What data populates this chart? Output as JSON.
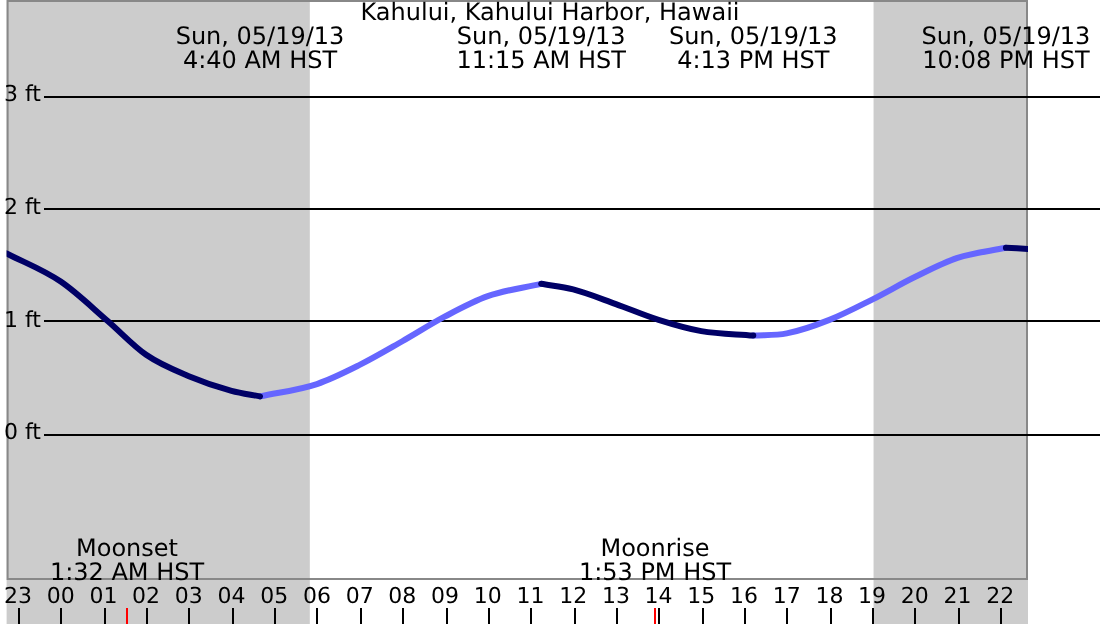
{
  "chart_data": {
    "type": "line",
    "title": "Kahului, Kahului Harbor, Hawaii",
    "xlim": [
      "--05-18T22:44",
      "--05-19T22:39"
    ],
    "xticks": [
      {
        "value": "--05-18T23:00",
        "label": "23"
      },
      {
        "value": "--05-19T00:00",
        "label": "00"
      },
      {
        "value": "--05-19T01:00",
        "label": "01"
      },
      {
        "value": "--05-19T02:00",
        "label": "02"
      },
      {
        "value": "--05-19T03:00",
        "label": "03"
      },
      {
        "value": "--05-19T04:00",
        "label": "04"
      },
      {
        "value": "--05-19T05:00",
        "label": "05"
      },
      {
        "value": "--05-19T06:00",
        "label": "06"
      },
      {
        "value": "--05-19T07:00",
        "label": "07"
      },
      {
        "value": "--05-19T08:00",
        "label": "08"
      },
      {
        "value": "--05-19T09:00",
        "label": "09"
      },
      {
        "value": "--05-19T10:00",
        "label": "10"
      },
      {
        "value": "--05-19T11:00",
        "label": "11"
      },
      {
        "value": "--05-19T12:00",
        "label": "12"
      },
      {
        "value": "--05-19T13:00",
        "label": "13"
      },
      {
        "value": "--05-19T14:00",
        "label": "14"
      },
      {
        "value": "--05-19T15:00",
        "label": "15"
      },
      {
        "value": "--05-19T16:00",
        "label": "16"
      },
      {
        "value": "--05-19T17:00",
        "label": "17"
      },
      {
        "value": "--05-19T18:00",
        "label": "18"
      },
      {
        "value": "--05-19T19:00",
        "label": "19"
      },
      {
        "value": "--05-19T20:00",
        "label": "20"
      },
      {
        "value": "--05-19T21:00",
        "label": "21"
      },
      {
        "value": "--05-19T22:00",
        "label": "22"
      }
    ],
    "ylim": [
      -1.3,
      3.85
    ],
    "yticks": [
      {
        "value": 0,
        "label": "0 ft"
      },
      {
        "value": 1,
        "label": "1 ft"
      },
      {
        "value": 2,
        "label": "2 ft"
      },
      {
        "value": 3,
        "label": "3 ft"
      }
    ],
    "grid": "y",
    "marker": "none",
    "line_style": "solid",
    "series": [
      {
        "color": "#000066",
        "x": [
          "--05-18T22:44",
          "--05-19T00:00",
          "--05-19T01:06",
          "--05-19T02:00",
          "--05-19T03:00",
          "--05-19T04:00",
          "--05-19T04:40",
          "--05-19T08:00",
          "--05-19T11:15",
          "--05-19T12:00",
          "--05-19T13:00",
          "--05-19T14:00",
          "--05-19T15:00",
          "--05-19T16:13",
          "--05-19T19:00",
          "--05-19T22:08",
          "--05-19T22:39"
        ],
        "values": [
          1.6,
          1.35,
          1,
          0.7,
          0.51,
          0.38,
          0.33,
          null,
          1.33,
          1.28,
          1.15,
          1.01,
          0.91,
          0.87,
          null,
          1.65,
          1.64
        ]
      },
      {
        "color": "#6666ff",
        "x": [
          "--05-19T04:40",
          "--05-19T06:00",
          "--05-19T07:00",
          "--05-19T08:00",
          "--05-19T09:00",
          "--05-19T10:00",
          "--05-19T11:15",
          "--05-19T14:00",
          "--05-19T16:13",
          "--05-19T17:00",
          "--05-19T18:00",
          "--05-19T19:00",
          "--05-19T20:00",
          "--05-19T21:00",
          "--05-19T22:08"
        ],
        "values": [
          0.33,
          0.44,
          0.61,
          0.82,
          1.04,
          1.22,
          1.33,
          null,
          0.87,
          0.89,
          1.01,
          1.19,
          1.39,
          1.56,
          1.65
        ]
      }
    ],
    "bands": [
      {
        "axis": "x",
        "from": "--05-18T22:44",
        "to": "--05-19T05:50",
        "color": "#cccccc"
      },
      {
        "axis": "x",
        "from": "--05-19T19:02",
        "to": "--05-19T22:39",
        "color": "#cccccc"
      }
    ],
    "x2lim": [
      "--05-18T22:44",
      "--05-19T22:39"
    ],
    "x2ticks": [
      {
        "value": "--05-19T04:40",
        "label": "Sun, 05/19/13\n4:40 AM HST"
      },
      {
        "value": "--05-19T11:15",
        "label": "Sun, 05/19/13\n11:15 AM HST"
      },
      {
        "value": "--05-19T16:13",
        "label": "Sun, 05/19/13\n4:13 PM HST"
      },
      {
        "value": "--05-19T22:08",
        "label": "Sun, 05/19/13\n10:08 PM HST"
      }
    ],
    "ref_lines": [
      {
        "axis": "x",
        "value": "--05-19T01:32",
        "label": "Moonset\n1:32 AM HST",
        "color": "#ff0000"
      },
      {
        "axis": "x",
        "value": "--05-19T13:53",
        "label": "Moonrise\n1:53 PM HST",
        "color": "#ff0000"
      }
    ]
  }
}
